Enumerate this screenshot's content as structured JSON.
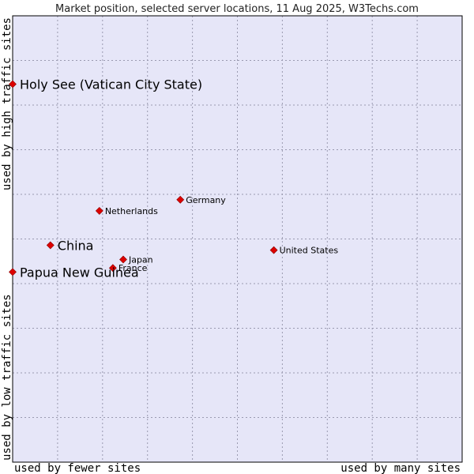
{
  "chart_data": {
    "type": "scatter",
    "title": "Market position, selected server locations, 11 Aug 2025, W3Techs.com",
    "xlabel_left": "used by fewer sites",
    "xlabel_right": "used by many sites",
    "ylabel_bottom": "used by low traffic sites",
    "ylabel_top": "used by high traffic sites",
    "xlim": [
      0,
      100
    ],
    "ylim": [
      0,
      100
    ],
    "grid": true,
    "points": [
      {
        "name": "Holy See (Vatican City State)",
        "x": 0.0,
        "y": 84.7,
        "emphasis": true
      },
      {
        "name": "Germany",
        "x": 37.3,
        "y": 58.8,
        "emphasis": false
      },
      {
        "name": "Netherlands",
        "x": 19.3,
        "y": 56.3,
        "emphasis": false
      },
      {
        "name": "China",
        "x": 8.4,
        "y": 48.6,
        "emphasis": true
      },
      {
        "name": "United States",
        "x": 58.1,
        "y": 47.5,
        "emphasis": false
      },
      {
        "name": "Japan",
        "x": 24.6,
        "y": 45.4,
        "emphasis": false
      },
      {
        "name": "France",
        "x": 22.3,
        "y": 43.5,
        "emphasis": false
      },
      {
        "name": "Papua New Guinea",
        "x": 0.0,
        "y": 42.6,
        "emphasis": true
      }
    ]
  },
  "colors": {
    "plot_bg": "#e6e6f8",
    "grid": "#9a9ab0",
    "marker": "#dd0000",
    "frame": "#000000"
  }
}
